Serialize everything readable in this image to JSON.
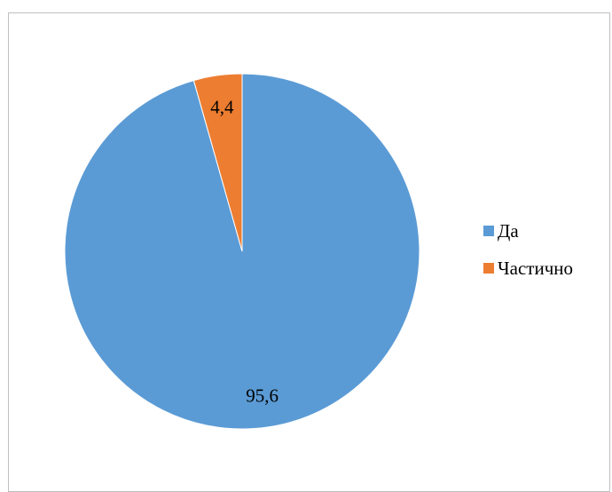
{
  "chart_data": {
    "type": "pie",
    "categories": [
      "Да",
      "Частично"
    ],
    "values": [
      95.6,
      4.4
    ],
    "data_labels": [
      "95,6",
      "4,4"
    ],
    "colors": [
      "#5b9bd5",
      "#ed7d31"
    ],
    "legend_position": "right",
    "start_angle": "12 o'clock, clockwise"
  },
  "legend": {
    "items": [
      {
        "label": "Да",
        "color": "#5b9bd5"
      },
      {
        "label": "Частично",
        "color": "#ed7d31"
      }
    ]
  }
}
